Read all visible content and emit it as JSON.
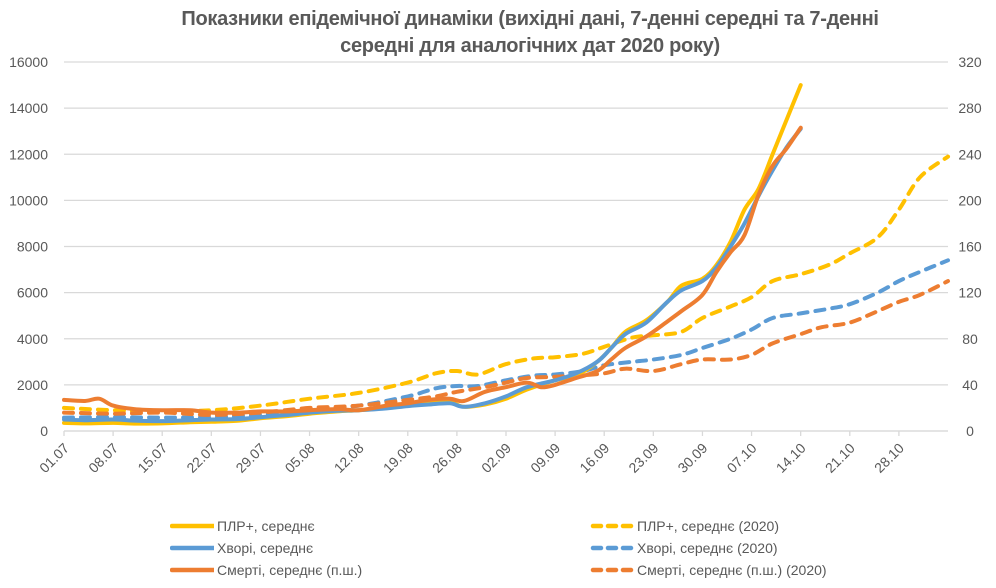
{
  "chart_data": {
    "type": "line",
    "title": "Показники епідемічної динаміки (вихідні дані, 7-денні середні та 7-денні середні для аналогічних дат 2020 року)",
    "title_lines": [
      "Показники епідемічної динаміки (вихідні дані, 7-денні середні та 7-денні",
      "середні для аналогічних дат 2020 року)"
    ],
    "xlabel": "",
    "ylabel_left": "",
    "ylabel_right": "",
    "x_tick_labels": [
      "01.07",
      "08.07",
      "15.07",
      "22.07",
      "29.07",
      "05.08",
      "12.08",
      "19.08",
      "26.08",
      "02.09",
      "09.09",
      "16.09",
      "23.09",
      "30.09",
      "07.10",
      "14.10",
      "21.10",
      "28.10"
    ],
    "x_tick_days": [
      0,
      7,
      14,
      21,
      28,
      35,
      42,
      49,
      56,
      63,
      70,
      77,
      84,
      91,
      98,
      105,
      112,
      119
    ],
    "x_range_days": [
      0,
      126
    ],
    "y_left_ticks": [
      0,
      2000,
      4000,
      6000,
      8000,
      10000,
      12000,
      14000,
      16000
    ],
    "y_right_ticks": [
      0,
      40,
      80,
      120,
      160,
      200,
      240,
      280,
      320
    ],
    "ylim_left": [
      0,
      16000
    ],
    "ylim_right": [
      0,
      320
    ],
    "grid": true,
    "legend_position": "bottom",
    "series": [
      {
        "name": "ПЛР+, середнє",
        "axis": "left",
        "style": "solid",
        "color": "#FFC000",
        "points": [
          [
            0,
            350
          ],
          [
            3,
            330
          ],
          [
            7,
            350
          ],
          [
            10,
            320
          ],
          [
            14,
            330
          ],
          [
            18,
            380
          ],
          [
            21,
            400
          ],
          [
            25,
            450
          ],
          [
            28,
            550
          ],
          [
            32,
            650
          ],
          [
            35,
            750
          ],
          [
            39,
            850
          ],
          [
            42,
            900
          ],
          [
            46,
            1000
          ],
          [
            49,
            1100
          ],
          [
            52,
            1200
          ],
          [
            55,
            1250
          ],
          [
            57,
            1050
          ],
          [
            60,
            1150
          ],
          [
            63,
            1400
          ],
          [
            66,
            1800
          ],
          [
            70,
            2200
          ],
          [
            73,
            2400
          ],
          [
            76,
            3000
          ],
          [
            78,
            3600
          ],
          [
            80,
            4300
          ],
          [
            83,
            4800
          ],
          [
            86,
            5600
          ],
          [
            88,
            6300
          ],
          [
            91,
            6600
          ],
          [
            93,
            7200
          ],
          [
            95,
            8200
          ],
          [
            97,
            9600
          ],
          [
            99,
            10500
          ],
          [
            101,
            12000
          ],
          [
            103,
            13500
          ],
          [
            105,
            15000
          ]
        ]
      },
      {
        "name": "Хворі, середнє",
        "axis": "left",
        "style": "solid",
        "color": "#5B9BD5",
        "points": [
          [
            0,
            500
          ],
          [
            3,
            470
          ],
          [
            7,
            500
          ],
          [
            10,
            450
          ],
          [
            14,
            430
          ],
          [
            18,
            470
          ],
          [
            21,
            500
          ],
          [
            25,
            520
          ],
          [
            28,
            600
          ],
          [
            32,
            700
          ],
          [
            35,
            800
          ],
          [
            39,
            880
          ],
          [
            42,
            900
          ],
          [
            46,
            980
          ],
          [
            49,
            1080
          ],
          [
            52,
            1150
          ],
          [
            55,
            1200
          ],
          [
            57,
            1050
          ],
          [
            60,
            1200
          ],
          [
            63,
            1500
          ],
          [
            66,
            1900
          ],
          [
            70,
            2200
          ],
          [
            73,
            2500
          ],
          [
            76,
            3000
          ],
          [
            78,
            3600
          ],
          [
            80,
            4200
          ],
          [
            83,
            4700
          ],
          [
            86,
            5600
          ],
          [
            88,
            6100
          ],
          [
            91,
            6500
          ],
          [
            93,
            7100
          ],
          [
            95,
            8000
          ],
          [
            97,
            9000
          ],
          [
            99,
            10200
          ],
          [
            101,
            11300
          ],
          [
            103,
            12300
          ],
          [
            105,
            13100
          ]
        ]
      },
      {
        "name": "Смерті, середнє (п.ш.)",
        "axis": "right",
        "style": "solid",
        "color": "#ED7D31",
        "points": [
          [
            0,
            27
          ],
          [
            3,
            26
          ],
          [
            5,
            28
          ],
          [
            7,
            22
          ],
          [
            10,
            19
          ],
          [
            14,
            18
          ],
          [
            18,
            18
          ],
          [
            21,
            16
          ],
          [
            25,
            16
          ],
          [
            28,
            17
          ],
          [
            32,
            17
          ],
          [
            35,
            18
          ],
          [
            39,
            19
          ],
          [
            42,
            18
          ],
          [
            46,
            22
          ],
          [
            49,
            24
          ],
          [
            52,
            27
          ],
          [
            55,
            28
          ],
          [
            57,
            26
          ],
          [
            60,
            34
          ],
          [
            63,
            38
          ],
          [
            66,
            42
          ],
          [
            68,
            38
          ],
          [
            70,
            40
          ],
          [
            73,
            46
          ],
          [
            76,
            52
          ],
          [
            78,
            62
          ],
          [
            80,
            72
          ],
          [
            83,
            82
          ],
          [
            86,
            95
          ],
          [
            88,
            104
          ],
          [
            91,
            118
          ],
          [
            93,
            138
          ],
          [
            95,
            155
          ],
          [
            97,
            170
          ],
          [
            99,
            205
          ],
          [
            101,
            230
          ],
          [
            103,
            245
          ],
          [
            105,
            263
          ]
        ]
      },
      {
        "name": "ПЛР+, середнє (2020)",
        "axis": "left",
        "style": "dashed",
        "color": "#FFC000",
        "points": [
          [
            0,
            1000
          ],
          [
            7,
            900
          ],
          [
            14,
            850
          ],
          [
            21,
            900
          ],
          [
            28,
            1100
          ],
          [
            35,
            1400
          ],
          [
            42,
            1650
          ],
          [
            49,
            2100
          ],
          [
            53,
            2500
          ],
          [
            56,
            2600
          ],
          [
            59,
            2450
          ],
          [
            63,
            2900
          ],
          [
            67,
            3150
          ],
          [
            70,
            3200
          ],
          [
            74,
            3350
          ],
          [
            77,
            3650
          ],
          [
            81,
            4050
          ],
          [
            84,
            4150
          ],
          [
            88,
            4300
          ],
          [
            91,
            4900
          ],
          [
            95,
            5400
          ],
          [
            98,
            5800
          ],
          [
            101,
            6500
          ],
          [
            105,
            6800
          ],
          [
            109,
            7200
          ],
          [
            112,
            7700
          ],
          [
            116,
            8400
          ],
          [
            119,
            9600
          ],
          [
            122,
            11000
          ],
          [
            126,
            11900
          ]
        ]
      },
      {
        "name": "Хворі, середнє (2020)",
        "axis": "left",
        "style": "dashed",
        "color": "#5B9BD5",
        "points": [
          [
            0,
            580
          ],
          [
            7,
            600
          ],
          [
            14,
            580
          ],
          [
            21,
            600
          ],
          [
            28,
            700
          ],
          [
            35,
            900
          ],
          [
            42,
            1100
          ],
          [
            49,
            1500
          ],
          [
            53,
            1850
          ],
          [
            56,
            1950
          ],
          [
            59,
            1950
          ],
          [
            63,
            2200
          ],
          [
            67,
            2400
          ],
          [
            70,
            2450
          ],
          [
            74,
            2600
          ],
          [
            77,
            2850
          ],
          [
            81,
            3000
          ],
          [
            84,
            3100
          ],
          [
            88,
            3300
          ],
          [
            91,
            3600
          ],
          [
            95,
            4000
          ],
          [
            98,
            4400
          ],
          [
            101,
            4900
          ],
          [
            105,
            5100
          ],
          [
            109,
            5300
          ],
          [
            112,
            5500
          ],
          [
            116,
            6000
          ],
          [
            119,
            6500
          ],
          [
            122,
            6900
          ],
          [
            126,
            7400
          ]
        ]
      },
      {
        "name": "Смерті, середнє (п.ш.) (2020)",
        "axis": "right",
        "style": "dashed",
        "color": "#ED7D31",
        "points": [
          [
            0,
            16
          ],
          [
            7,
            15
          ],
          [
            14,
            16
          ],
          [
            21,
            14
          ],
          [
            28,
            16
          ],
          [
            35,
            20
          ],
          [
            42,
            22
          ],
          [
            49,
            27
          ],
          [
            53,
            30
          ],
          [
            56,
            34
          ],
          [
            60,
            38
          ],
          [
            63,
            42
          ],
          [
            66,
            46
          ],
          [
            70,
            47
          ],
          [
            73,
            48
          ],
          [
            77,
            50
          ],
          [
            80,
            54
          ],
          [
            84,
            52
          ],
          [
            88,
            58
          ],
          [
            91,
            62
          ],
          [
            95,
            62
          ],
          [
            98,
            66
          ],
          [
            101,
            76
          ],
          [
            105,
            84
          ],
          [
            108,
            90
          ],
          [
            112,
            94
          ],
          [
            116,
            104
          ],
          [
            119,
            112
          ],
          [
            122,
            118
          ],
          [
            126,
            130
          ]
        ]
      }
    ]
  },
  "legend": {
    "items": [
      {
        "label": "ПЛР+, середнє",
        "color": "#FFC000",
        "style": "solid"
      },
      {
        "label": "Хворі, середнє",
        "color": "#5B9BD5",
        "style": "solid"
      },
      {
        "label": "Смерті, середнє (п.ш.)",
        "color": "#ED7D31",
        "style": "solid"
      },
      {
        "label": "ПЛР+, середнє (2020)",
        "color": "#FFC000",
        "style": "dashed"
      },
      {
        "label": "Хворі, середнє (2020)",
        "color": "#5B9BD5",
        "style": "dashed"
      },
      {
        "label": "Смерті, середнє (п.ш.) (2020)",
        "color": "#ED7D31",
        "style": "dashed"
      }
    ]
  }
}
